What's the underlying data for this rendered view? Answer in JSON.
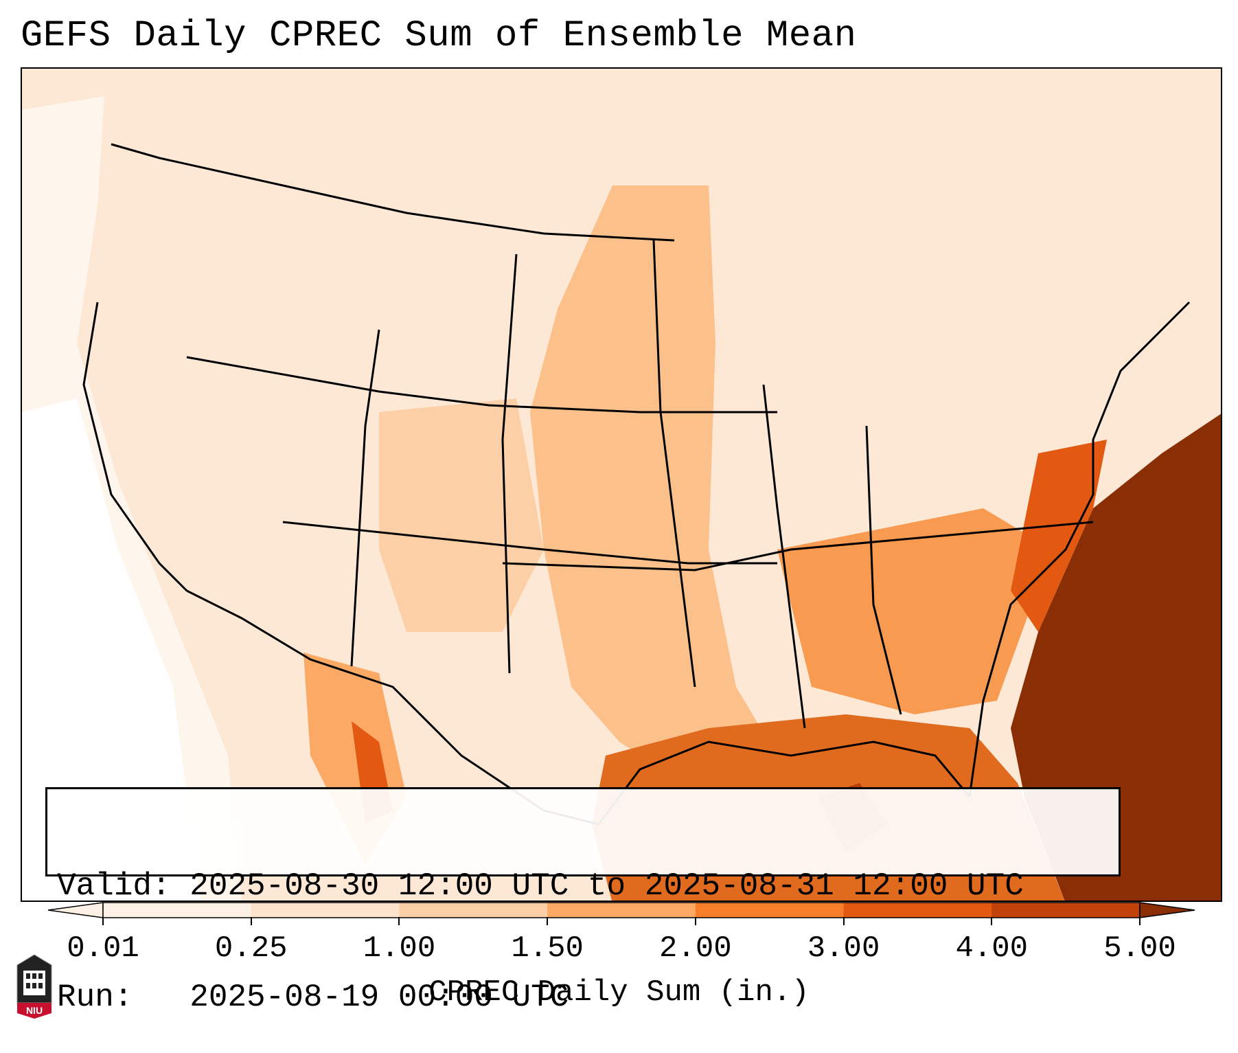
{
  "title": "GEFS Daily CPREC Sum of Ensemble Mean",
  "info": {
    "valid_line": "Valid: 2025-08-30 12:00 UTC to 2025-08-31 12:00 UTC",
    "run_line": "Run:   2025-08-19 00:00 UTC"
  },
  "colorbar": {
    "title": "CPREC Daily Sum (in.)",
    "ticks": [
      "0.01",
      "0.25",
      "1.00",
      "1.50",
      "2.00",
      "3.00",
      "4.00",
      "5.00"
    ],
    "colors": [
      "#fdf0e4",
      "#fde3cb",
      "#fdcfa6",
      "#fca965",
      "#f77f2a",
      "#e35912",
      "#c3420a",
      "#8a2f05"
    ],
    "extend": "both"
  },
  "logo": {
    "text": "NIU",
    "color": "#c8102e"
  },
  "map": {
    "region": "Contiguous United States, northern Mexico, Gulf of Mexico, western Atlantic",
    "variable": "Convective precipitation daily sum",
    "heaviest_area": "Western Atlantic off the Southeast US coast"
  }
}
